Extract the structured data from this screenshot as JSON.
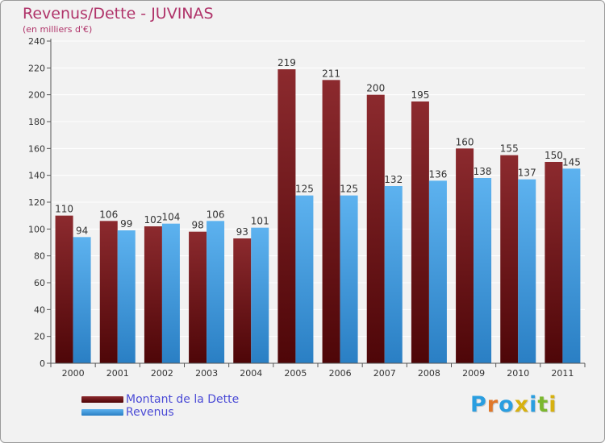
{
  "header": {
    "title": "Revenus/Dette - JUVINAS",
    "subtitle": "(en milliers d'€)"
  },
  "colors": {
    "dette": "#7a1c20",
    "revenus": "#4ea6e6",
    "title": "#b0346a",
    "legend_text": "#4b4bd6"
  },
  "logo": {
    "text": "Proxiti",
    "letter_colors": [
      "#2a9ee0",
      "#e0782a",
      "#2a9ee0",
      "#d7b10f",
      "#2a9ee0",
      "#7cb82f",
      "#d7b10f"
    ]
  },
  "chart_data": {
    "type": "bar",
    "categories": [
      "2000",
      "2001",
      "2002",
      "2003",
      "2004",
      "2005",
      "2006",
      "2007",
      "2008",
      "2009",
      "2010",
      "2011"
    ],
    "series": [
      {
        "name": "Montant de la Dette",
        "values": [
          110,
          106,
          102,
          98,
          93,
          219,
          211,
          200,
          195,
          160,
          155,
          150
        ]
      },
      {
        "name": "Revenus",
        "values": [
          94,
          99,
          104,
          106,
          101,
          125,
          125,
          132,
          136,
          138,
          137,
          145
        ]
      }
    ],
    "title": "Revenus/Dette - JUVINAS",
    "subtitle": "(en milliers d'€)",
    "ylim": [
      0,
      240
    ],
    "y_ticks": [
      0,
      20,
      40,
      60,
      80,
      100,
      120,
      140,
      160,
      180,
      200,
      220,
      240
    ],
    "grid": true,
    "legend_position": "bottom-left"
  }
}
